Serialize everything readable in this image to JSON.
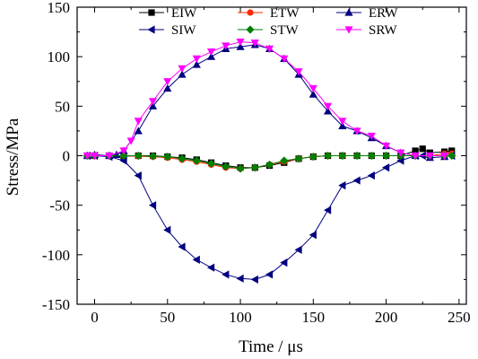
{
  "chart_data": {
    "type": "line",
    "title": "",
    "xlabel": "Time / μs",
    "ylabel": "Stress/MPa",
    "xlim": [
      -12,
      255
    ],
    "ylim": [
      -150,
      150
    ],
    "xticks": [
      0,
      50,
      100,
      150,
      200,
      250
    ],
    "yticks": [
      -150,
      -100,
      -50,
      0,
      50,
      100,
      150
    ],
    "grid": false,
    "legend_position": "top-right",
    "series": [
      {
        "name": "EIW",
        "color": "#000000",
        "marker": "square",
        "x": [
          -5,
          0,
          10,
          20,
          30,
          40,
          50,
          60,
          70,
          80,
          90,
          100,
          110,
          120,
          130,
          140,
          150,
          160,
          170,
          180,
          190,
          200,
          210,
          220,
          225,
          230,
          240,
          245
        ],
        "y": [
          0,
          0,
          0,
          -0.5,
          0,
          0,
          -1,
          -2,
          -4,
          -7,
          -10,
          -12,
          -12,
          -10,
          -7,
          -3,
          -1,
          0,
          0,
          0,
          0,
          0,
          0,
          5,
          7,
          3,
          4,
          5
        ]
      },
      {
        "name": "ETW",
        "color": "#ff2a00",
        "marker": "circle",
        "x": [
          -5,
          0,
          10,
          20,
          30,
          40,
          50,
          60,
          70,
          80,
          90,
          100,
          110,
          120,
          130,
          140,
          150,
          160,
          170,
          180,
          190,
          200,
          210,
          220,
          230,
          240,
          245
        ],
        "y": [
          0,
          0,
          0,
          0,
          -0.5,
          -1,
          -2,
          -4,
          -6,
          -9,
          -12,
          -13,
          -12,
          -9,
          -6,
          -3,
          -1,
          0,
          0,
          0,
          0,
          0,
          0,
          0,
          0,
          2,
          2
        ]
      },
      {
        "name": "ERW",
        "color": "#000080",
        "marker": "triangle-up",
        "x": [
          -5,
          0,
          10,
          15,
          20,
          30,
          40,
          50,
          60,
          70,
          80,
          90,
          100,
          110,
          120,
          130,
          140,
          150,
          160,
          170,
          180,
          190,
          200,
          210,
          220,
          230,
          240
        ],
        "y": [
          0,
          1,
          0,
          1,
          5,
          25,
          50,
          68,
          82,
          92,
          100,
          108,
          110,
          112,
          108,
          98,
          82,
          62,
          45,
          30,
          25,
          18,
          10,
          3,
          0,
          -2,
          -1
        ]
      },
      {
        "name": "SIW",
        "color": "#000080",
        "marker": "triangle-left",
        "x": [
          -5,
          0,
          10,
          20,
          30,
          40,
          50,
          60,
          70,
          80,
          90,
          100,
          110,
          120,
          130,
          140,
          150,
          160,
          170,
          180,
          190,
          200,
          210,
          220,
          225,
          230,
          240,
          245
        ],
        "y": [
          0,
          0,
          -1,
          -5,
          -20,
          -50,
          -75,
          -92,
          -105,
          -113,
          -120,
          -124,
          -125,
          -120,
          -108,
          -95,
          -80,
          -55,
          -30,
          -25,
          -20,
          -12,
          -5,
          0,
          0,
          0,
          0,
          0
        ]
      },
      {
        "name": "STW",
        "color": "#008000",
        "marker": "diamond",
        "x": [
          -5,
          0,
          10,
          20,
          30,
          40,
          50,
          60,
          70,
          80,
          90,
          100,
          110,
          120,
          130,
          140,
          150,
          160,
          170,
          180,
          190,
          200,
          210,
          220,
          230,
          240,
          245
        ],
        "y": [
          0,
          0,
          0,
          0,
          0,
          -0.5,
          -1,
          -3,
          -5,
          -8,
          -11,
          -13,
          -12,
          -9,
          -5,
          -3,
          -1,
          0,
          0,
          0,
          0,
          0,
          0,
          0,
          0,
          0,
          0
        ]
      },
      {
        "name": "SRW",
        "color": "#ff00ff",
        "marker": "triangle-down",
        "x": [
          -5,
          0,
          10,
          20,
          25,
          30,
          40,
          50,
          60,
          70,
          80,
          90,
          100,
          110,
          120,
          130,
          140,
          150,
          160,
          170,
          180,
          190,
          200,
          210,
          220,
          230,
          240
        ],
        "y": [
          0,
          0,
          0,
          5,
          15,
          35,
          55,
          75,
          88,
          98,
          105,
          111,
          115,
          114,
          108,
          98,
          85,
          68,
          50,
          35,
          25,
          20,
          10,
          3,
          0,
          0,
          0
        ]
      }
    ]
  }
}
